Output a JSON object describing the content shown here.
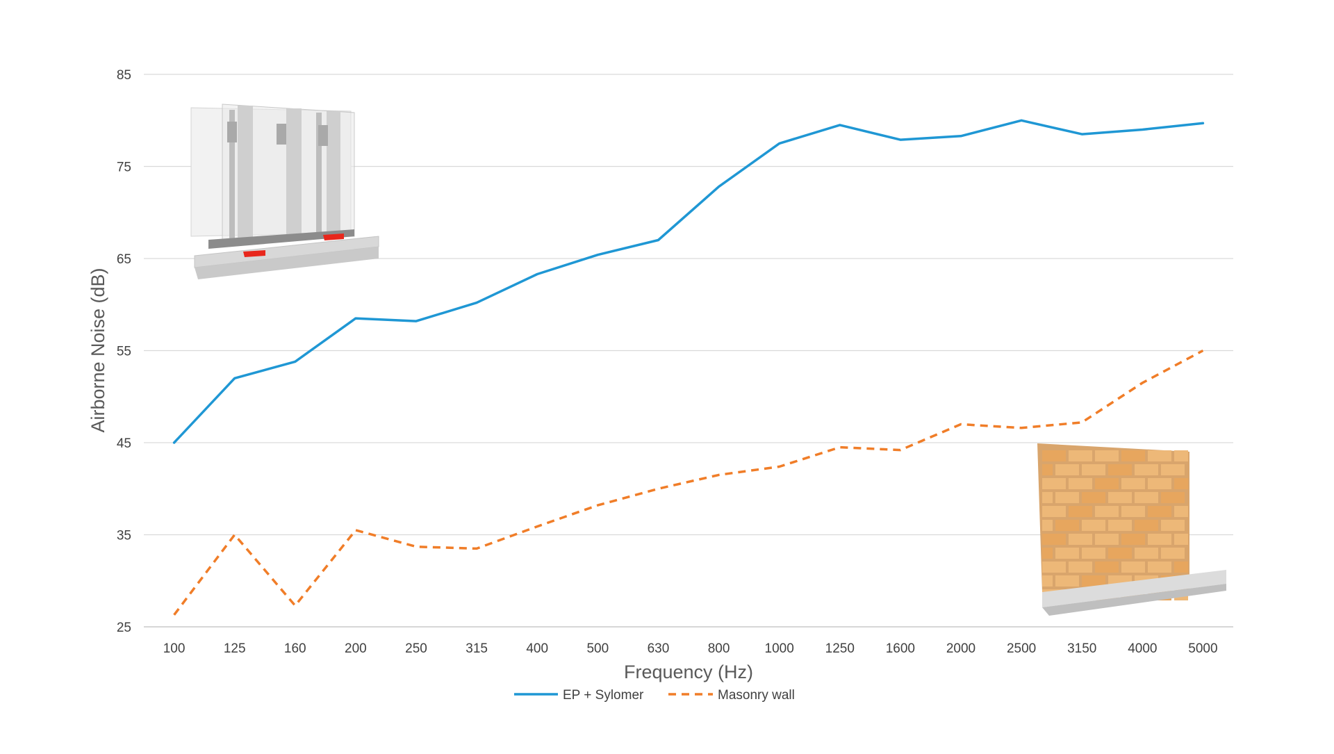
{
  "chart_data": {
    "type": "line",
    "title": "",
    "xlabel": "Frequency (Hz)",
    "ylabel": "Airborne Noise (dB)",
    "categories": [
      "100",
      "125",
      "160",
      "200",
      "250",
      "315",
      "400",
      "500",
      "630",
      "800",
      "1000",
      "1250",
      "1600",
      "2000",
      "2500",
      "3150",
      "4000",
      "5000"
    ],
    "ylim": [
      25,
      85
    ],
    "yticks": [
      85,
      75,
      65,
      55,
      45,
      35,
      25
    ],
    "grid": "horizontal",
    "legend": "bottom",
    "series": [
      {
        "name": "EP + Sylomer",
        "color": "#1f97d4",
        "style": "solid",
        "values": [
          45,
          52,
          53.8,
          58.5,
          58.2,
          60.2,
          63.3,
          65.4,
          67,
          72.8,
          77.5,
          79.5,
          77.9,
          78.3,
          80,
          78.5,
          79,
          79.7
        ]
      },
      {
        "name": "Masonry wall",
        "color": "#f07d28",
        "style": "dashed",
        "values": [
          26.3,
          35,
          27.3,
          35.5,
          33.7,
          33.5,
          35.9,
          38.2,
          40,
          41.5,
          42.4,
          44.5,
          44.2,
          47,
          46.6,
          47.2,
          51.5,
          55
        ]
      }
    ],
    "illustrations": [
      "wall-panel-system-illustration",
      "brick-wall-illustration"
    ]
  }
}
